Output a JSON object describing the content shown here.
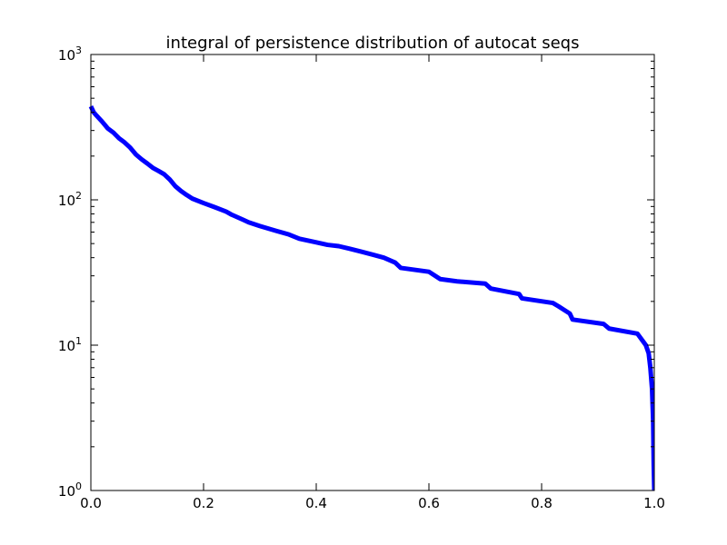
{
  "chart_data": {
    "type": "line",
    "title": "integral of persistence distribution of autocat seqs",
    "xlabel": "",
    "ylabel": "",
    "xlim": [
      0.0,
      1.0
    ],
    "ylim": [
      1,
      1000
    ],
    "yscale": "log",
    "grid": false,
    "x_ticks": [
      "0.0",
      "0.2",
      "0.4",
      "0.6",
      "0.8",
      "1.0"
    ],
    "x_tick_values": [
      0.0,
      0.2,
      0.4,
      0.6,
      0.8,
      1.0
    ],
    "y_tick_values": [
      1,
      10,
      100,
      1000
    ],
    "y_tick_base": "10",
    "y_tick_exponents": [
      "0",
      "1",
      "2",
      "3"
    ],
    "series": [
      {
        "color": "#0000ff",
        "x": [
          0.0,
          0.005,
          0.01,
          0.02,
          0.03,
          0.04,
          0.05,
          0.06,
          0.07,
          0.08,
          0.09,
          0.1,
          0.11,
          0.12,
          0.13,
          0.14,
          0.15,
          0.16,
          0.17,
          0.18,
          0.2,
          0.22,
          0.24,
          0.25,
          0.27,
          0.28,
          0.3,
          0.33,
          0.35,
          0.36,
          0.37,
          0.4,
          0.42,
          0.44,
          0.46,
          0.48,
          0.5,
          0.52,
          0.54,
          0.55,
          0.6,
          0.62,
          0.65,
          0.7,
          0.71,
          0.76,
          0.765,
          0.82,
          0.83,
          0.85,
          0.855,
          0.91,
          0.92,
          0.97,
          0.985,
          0.99,
          0.993,
          0.996,
          0.998,
          0.999,
          1.0
        ],
        "y": [
          440,
          400,
          380,
          345,
          310,
          290,
          265,
          248,
          228,
          205,
          190,
          178,
          166,
          158,
          150,
          138,
          124,
          115,
          108,
          102,
          95,
          89,
          83,
          79,
          73,
          70,
          66,
          61,
          58,
          56,
          54,
          51,
          49,
          48,
          46,
          44,
          42,
          40,
          37,
          34,
          32,
          28.5,
          27.5,
          26.5,
          24.5,
          22.5,
          21,
          19.5,
          18.5,
          16.5,
          15,
          14,
          13,
          12,
          10,
          8.8,
          7,
          5,
          3,
          1.5,
          1
        ]
      }
    ]
  }
}
